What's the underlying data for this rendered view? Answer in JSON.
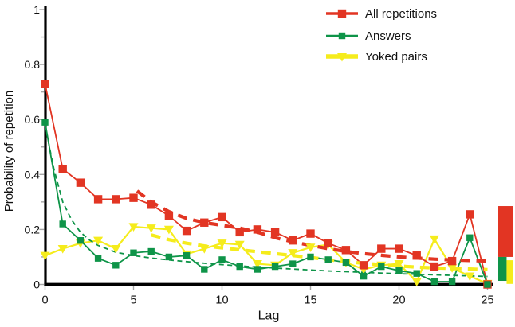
{
  "chart_data": {
    "type": "line",
    "title": "",
    "xlabel": "Lag",
    "ylabel": "Probability of repetition",
    "xlim": [
      0,
      25.5
    ],
    "ylim": [
      0,
      1
    ],
    "grid": false,
    "legend_position": "top-right",
    "x_ticks": [
      0,
      5,
      10,
      15,
      20,
      25
    ],
    "y_ticks": [
      0,
      0.2,
      0.4,
      0.6,
      0.8,
      1
    ],
    "x_tick_labels": [
      "0",
      "5",
      "10",
      "15",
      "20",
      "25"
    ],
    "y_tick_labels": [
      "0",
      "0.2",
      "0.4",
      "0.6",
      "0.8",
      "1"
    ],
    "x": [
      0,
      1,
      2,
      3,
      4,
      5,
      6,
      7,
      8,
      9,
      10,
      11,
      12,
      13,
      14,
      15,
      16,
      17,
      18,
      19,
      20,
      21,
      22,
      23,
      24,
      25
    ],
    "series": [
      {
        "name": "All repetitions",
        "color": "#e23523",
        "marker": "filled-square",
        "values": [
          0.73,
          0.42,
          0.37,
          0.31,
          0.31,
          0.315,
          0.29,
          0.25,
          0.195,
          0.225,
          0.245,
          0.19,
          0.2,
          0.19,
          0.16,
          0.185,
          0.15,
          0.125,
          0.07,
          0.13,
          0.13,
          0.105,
          0.065,
          0.085,
          0.255,
          0
        ]
      },
      {
        "name": "Answers",
        "color": "#0e9448",
        "marker": "filled-square-small",
        "values": [
          0.59,
          0.22,
          0.16,
          0.095,
          0.07,
          0.115,
          0.12,
          0.1,
          0.105,
          0.055,
          0.09,
          0.065,
          0.055,
          0.065,
          0.075,
          0.1,
          0.09,
          0.08,
          0.03,
          0.065,
          0.05,
          0.04,
          0.01,
          0.01,
          0.17,
          0
        ]
      },
      {
        "name": "Yoked pairs",
        "color": "#f5ec1c",
        "marker": "triangle-down",
        "values": [
          0.105,
          0.13,
          0.15,
          0.16,
          0.13,
          0.21,
          0.205,
          0.2,
          0.11,
          0.13,
          0.15,
          0.145,
          0.075,
          0.07,
          0.115,
          0.135,
          0.145,
          0.08,
          0.055,
          0.07,
          0.075,
          0.01,
          0.165,
          0.06,
          0.03,
          0.003
        ]
      }
    ],
    "trend_lines": [
      {
        "series": "All repetitions",
        "color": "#e23523",
        "dash": "long",
        "points": [
          [
            5.2,
            0.34
          ],
          [
            6,
            0.3
          ],
          [
            7,
            0.265
          ],
          [
            8,
            0.24
          ],
          [
            9,
            0.225
          ],
          [
            10,
            0.215
          ],
          [
            11,
            0.205
          ],
          [
            12,
            0.19
          ],
          [
            13,
            0.17
          ],
          [
            14,
            0.155
          ],
          [
            15,
            0.142
          ],
          [
            16,
            0.13
          ],
          [
            17,
            0.12
          ],
          [
            18,
            0.112
          ],
          [
            19,
            0.106
          ],
          [
            20,
            0.1
          ],
          [
            21,
            0.096
          ],
          [
            22,
            0.092
          ],
          [
            23,
            0.089
          ],
          [
            24,
            0.087
          ],
          [
            25,
            0.085
          ]
        ]
      },
      {
        "series": "Yoked pairs",
        "color": "#f5ec1c",
        "dash": "long",
        "points": [
          [
            6,
            0.18
          ],
          [
            7,
            0.163
          ],
          [
            8,
            0.15
          ],
          [
            9,
            0.14
          ],
          [
            10,
            0.133
          ],
          [
            11,
            0.126
          ],
          [
            12,
            0.119
          ],
          [
            13,
            0.112
          ],
          [
            14,
            0.105
          ],
          [
            15,
            0.098
          ],
          [
            16,
            0.09
          ],
          [
            17,
            0.083
          ],
          [
            18,
            0.077
          ],
          [
            19,
            0.072
          ],
          [
            20,
            0.067
          ],
          [
            21,
            0.063
          ],
          [
            22,
            0.06
          ],
          [
            23,
            0.058
          ],
          [
            24,
            0.056
          ],
          [
            25,
            0.054
          ]
        ]
      },
      {
        "series": "Answers",
        "color": "#0e9448",
        "dash": "short",
        "points": [
          [
            0,
            0.58
          ],
          [
            0.5,
            0.42
          ],
          [
            1,
            0.3
          ],
          [
            1.5,
            0.235
          ],
          [
            2,
            0.19
          ],
          [
            2.5,
            0.162
          ],
          [
            3,
            0.142
          ],
          [
            4,
            0.117
          ],
          [
            5,
            0.105
          ],
          [
            6,
            0.096
          ],
          [
            7,
            0.089
          ],
          [
            8,
            0.083
          ],
          [
            9,
            0.077
          ],
          [
            10,
            0.072
          ],
          [
            12,
            0.063
          ],
          [
            14,
            0.056
          ],
          [
            16,
            0.049
          ],
          [
            18,
            0.044
          ],
          [
            20,
            0.039
          ],
          [
            22,
            0.035
          ],
          [
            24,
            0.031
          ],
          [
            25,
            0.029
          ]
        ]
      }
    ],
    "end_bar": {
      "description": "stacked summary bar at right edge of plot",
      "segments": [
        {
          "series": "All repetitions",
          "color": "#e23523",
          "from": 0.1,
          "to": 0.285,
          "align": "full"
        },
        {
          "series": "Answers",
          "color": "#0e9448",
          "from": 0.013,
          "to": 0.1,
          "align": "left"
        },
        {
          "series": "Yoked pairs",
          "color": "#f5ec1c",
          "from": 0.002,
          "to": 0.088,
          "align": "right"
        }
      ]
    }
  }
}
